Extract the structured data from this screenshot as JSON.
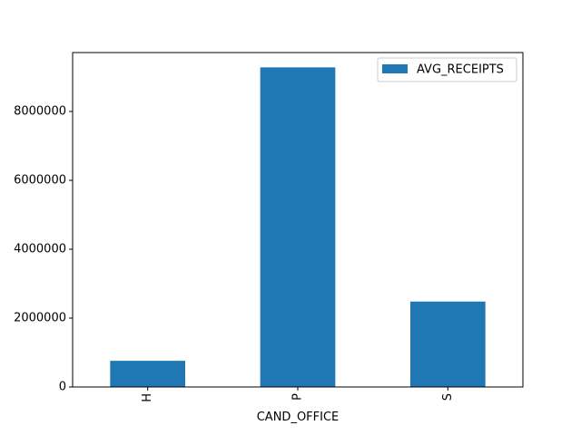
{
  "chart_data": {
    "type": "bar",
    "title": "",
    "xlabel": "CAND_OFFICE",
    "ylabel": "",
    "categories": [
      "H",
      "P",
      "S"
    ],
    "series": [
      {
        "name": "AVG_RECEIPTS",
        "values": [
          760000,
          9280000,
          2480000
        ]
      }
    ],
    "ylim": [
      0,
      9710000
    ],
    "yticks": [
      0,
      2000000,
      4000000,
      6000000,
      8000000
    ],
    "ytick_labels": [
      "0",
      "2000000",
      "4000000",
      "6000000",
      "8000000"
    ],
    "xtick_rotation": 90,
    "grid": false,
    "legend": {
      "placement": "top-right"
    },
    "colors": {
      "bar": "#1f77b4",
      "axes": "#000000",
      "background": "#ffffff"
    }
  }
}
